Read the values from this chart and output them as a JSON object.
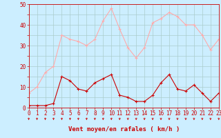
{
  "hours": [
    0,
    1,
    2,
    3,
    4,
    5,
    6,
    7,
    8,
    9,
    10,
    11,
    12,
    13,
    14,
    15,
    16,
    17,
    18,
    19,
    20,
    21,
    22,
    23
  ],
  "wind_avg": [
    1,
    1,
    1,
    2,
    15,
    13,
    9,
    8,
    12,
    14,
    16,
    6,
    5,
    3,
    3,
    6,
    12,
    16,
    9,
    8,
    11,
    7,
    3,
    7
  ],
  "wind_gust": [
    7,
    10,
    17,
    20,
    35,
    33,
    32,
    30,
    33,
    42,
    48,
    38,
    29,
    24,
    29,
    41,
    43,
    46,
    44,
    40,
    40,
    35,
    28,
    33
  ],
  "avg_color": "#cc0000",
  "gust_color": "#ffaaaa",
  "bg_color": "#cceeff",
  "grid_color": "#aacccc",
  "ylim": [
    0,
    50
  ],
  "ytick_labels": [
    "0",
    "",
    "10",
    "",
    "20",
    "",
    "30",
    "",
    "40",
    "",
    "50"
  ],
  "ytick_vals": [
    0,
    5,
    10,
    15,
    20,
    25,
    30,
    35,
    40,
    45,
    50
  ],
  "xlabel": "Vent moyen/en rafales ( km/h )",
  "xlabel_color": "#cc0000",
  "tick_color": "#cc0000",
  "axis_fontsize": 5.5,
  "xlabel_fontsize": 6.5
}
